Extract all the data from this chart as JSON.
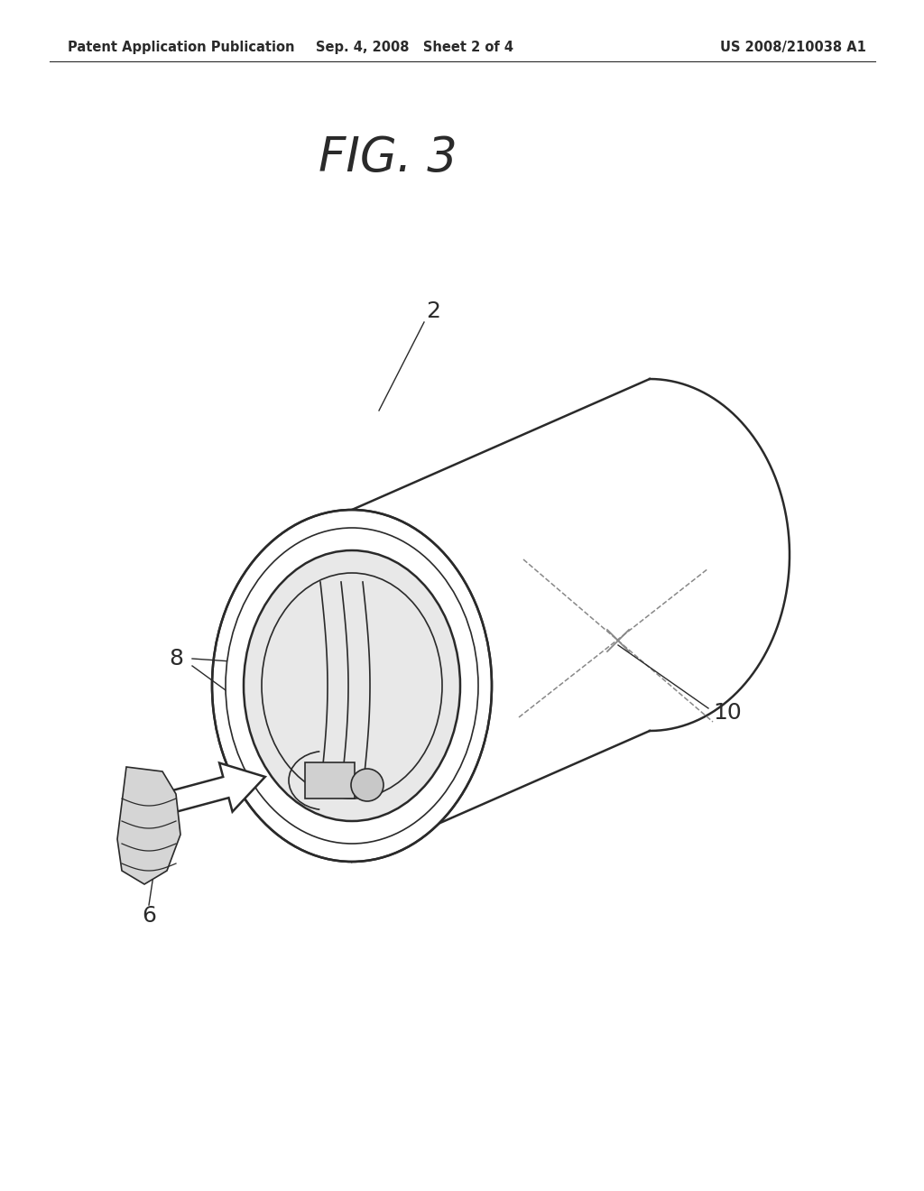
{
  "bg_color": "#ffffff",
  "line_color": "#2a2a2a",
  "dashed_color": "#888888",
  "header_left": "Patent Application Publication",
  "header_mid": "Sep. 4, 2008   Sheet 2 of 4",
  "header_right": "US 2008/210038 A1",
  "fig_label": "FIG. 3",
  "label_2": "2",
  "label_6": "6",
  "label_8": "8",
  "label_10": "10"
}
